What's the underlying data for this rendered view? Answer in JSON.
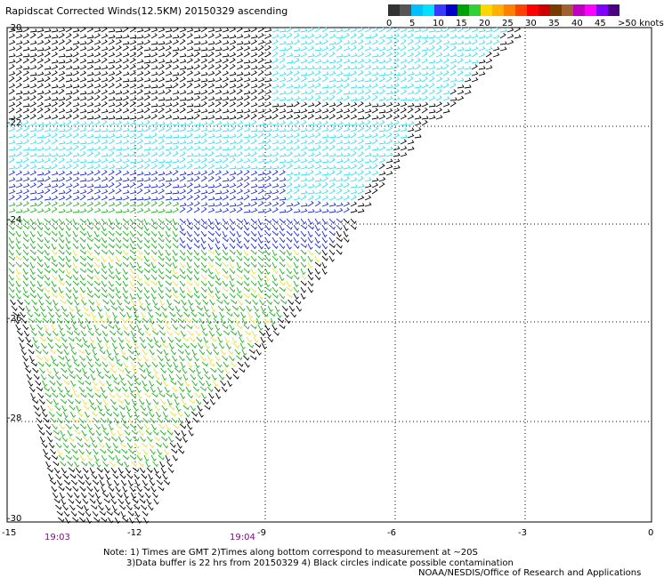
{
  "header": {
    "title": "Rapidscat Corrected Winds(12.5KM) 20150329 ascending"
  },
  "legend": {
    "colors": [
      "#333333",
      "#555555",
      "#00bfff",
      "#00e0ff",
      "#3a3aff",
      "#0000cc",
      "#00a000",
      "#33d033",
      "#ffd700",
      "#ffb000",
      "#ff7f00",
      "#ff4000",
      "#ff0000",
      "#cc0000",
      "#7a3b00",
      "#a06030",
      "#c000c0",
      "#ff00ff",
      "#8000ff",
      "#4b0082"
    ],
    "labels": [
      "0",
      "5",
      "10",
      "15",
      "20",
      "25",
      "30",
      "35",
      "40",
      "45",
      ">50 knots"
    ]
  },
  "axes": {
    "lat_labels": [
      "-20",
      "-22",
      "-24",
      "-26",
      "-28",
      "-30"
    ],
    "lon_labels": [
      "-15",
      "-12",
      "-9",
      "-6",
      "-3",
      "0"
    ]
  },
  "times": [
    "19:03",
    "19:04"
  ],
  "notes": {
    "line1": "Note: 1) Times are GMT 2)Times along bottom correspond to measurement at ~20S",
    "line2": "3)Data buffer is 22 hrs from 20150329 4) Black circles indicate possible contamination",
    "line3": "NOAA/NESDIS/Office of Research and Applications"
  },
  "colors": {
    "calm": "#000000",
    "light": "#33e0f0",
    "moderate": "#1a2ad6",
    "fresh": "#22b022",
    "strong": "#f0e040"
  }
}
